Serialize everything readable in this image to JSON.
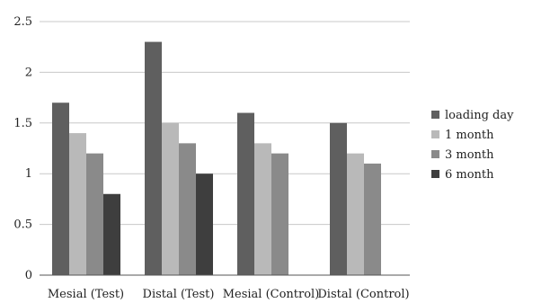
{
  "chart_data": {
    "type": "bar",
    "categories": [
      "Mesial (Test)",
      "Distal (Test)",
      "Mesial (Control)",
      "Distal (Control)"
    ],
    "series": [
      {
        "name": "loading day",
        "color": "#5f5f5f",
        "values": [
          1.7,
          2.3,
          1.6,
          1.5
        ]
      },
      {
        "name": "1 month",
        "color": "#b9b9b9",
        "values": [
          1.4,
          1.5,
          1.3,
          1.2
        ]
      },
      {
        "name": "3 month",
        "color": "#8a8a8a",
        "values": [
          1.2,
          1.3,
          1.2,
          1.1
        ]
      },
      {
        "name": "6 month",
        "color": "#3e3e3e",
        "values": [
          0.8,
          1.0,
          null,
          null
        ]
      }
    ],
    "yticks": [
      "0",
      "0.5",
      "1",
      "1.5",
      "2",
      "2.5"
    ],
    "ylim": [
      0,
      2.5
    ],
    "grid": true,
    "legend_position": "right",
    "title": "",
    "xlabel": "",
    "ylabel": ""
  }
}
